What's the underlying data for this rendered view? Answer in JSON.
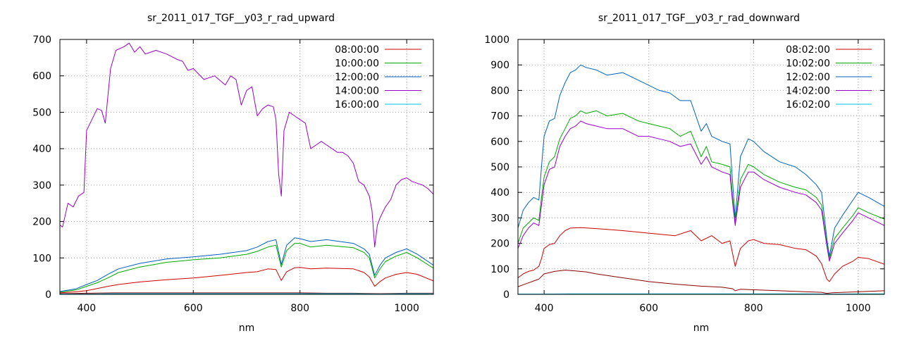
{
  "chart_data": [
    {
      "type": "line",
      "title": "sr_2011_017_TGF__y03_r_rad_upward",
      "xlabel": "nm",
      "ylabel": "",
      "xlim": [
        350,
        1050
      ],
      "ylim": [
        0,
        700
      ],
      "xticks": [
        400,
        600,
        800,
        1000
      ],
      "yticks": [
        0,
        100,
        200,
        300,
        400,
        500,
        600,
        700
      ],
      "grid": true,
      "legend_position": "top-right",
      "series": [
        {
          "name": "08:00:00",
          "color": "#8b0000",
          "x": [
            350,
            400,
            450,
            500,
            550,
            600,
            650,
            700,
            750,
            800,
            850,
            900,
            950,
            1000,
            1050
          ],
          "y": [
            2,
            3,
            4,
            4,
            4,
            4,
            4,
            4,
            4,
            4,
            3,
            3,
            2,
            3,
            3
          ]
        },
        {
          "name": "08:00:00",
          "color": "#cc0000",
          "x": [
            350,
            380,
            400,
            420,
            440,
            460,
            500,
            550,
            600,
            650,
            700,
            720,
            740,
            755,
            765,
            775,
            790,
            800,
            820,
            850,
            900,
            920,
            930,
            940,
            950,
            960,
            980,
            1000,
            1020,
            1050
          ],
          "y": [
            4,
            7,
            10,
            16,
            22,
            27,
            34,
            40,
            45,
            52,
            60,
            62,
            70,
            68,
            38,
            62,
            73,
            74,
            70,
            72,
            70,
            60,
            48,
            22,
            35,
            45,
            55,
            60,
            55,
            37
          ]
        },
        {
          "name": "10:00:00",
          "color": "#00aa00",
          "x": [
            350,
            380,
            400,
            420,
            440,
            460,
            500,
            550,
            600,
            650,
            700,
            720,
            740,
            755,
            765,
            775,
            790,
            800,
            820,
            850,
            900,
            920,
            930,
            940,
            950,
            960,
            980,
            1000,
            1020,
            1050
          ],
          "y": [
            6,
            12,
            22,
            32,
            45,
            60,
            75,
            88,
            95,
            100,
            110,
            118,
            130,
            135,
            75,
            120,
            140,
            140,
            130,
            135,
            128,
            115,
            100,
            45,
            70,
            90,
            105,
            115,
            100,
            72
          ]
        },
        {
          "name": "12:00:00",
          "color": "#0060c0",
          "x": [
            350,
            380,
            400,
            420,
            440,
            460,
            500,
            550,
            600,
            650,
            700,
            720,
            740,
            755,
            765,
            775,
            790,
            800,
            820,
            850,
            900,
            920,
            930,
            940,
            950,
            960,
            980,
            1000,
            1020,
            1050
          ],
          "y": [
            8,
            15,
            27,
            38,
            55,
            70,
            85,
            97,
            103,
            110,
            120,
            130,
            145,
            150,
            82,
            135,
            155,
            153,
            145,
            150,
            140,
            125,
            110,
            52,
            80,
            100,
            115,
            125,
            110,
            80
          ]
        },
        {
          "name": "14:00:00",
          "color": "#9900cc",
          "x": [
            350,
            355,
            365,
            375,
            385,
            395,
            400,
            410,
            420,
            428,
            435,
            445,
            455,
            470,
            480,
            490,
            500,
            510,
            520,
            530,
            550,
            570,
            580,
            590,
            600,
            620,
            640,
            660,
            670,
            680,
            690,
            700,
            710,
            720,
            730,
            740,
            750,
            755,
            760,
            765,
            770,
            780,
            790,
            800,
            810,
            820,
            830,
            840,
            850,
            860,
            870,
            880,
            890,
            900,
            910,
            920,
            930,
            935,
            940,
            945,
            950,
            960,
            970,
            980,
            990,
            1000,
            1010,
            1020,
            1030,
            1040,
            1050
          ],
          "y": [
            190,
            185,
            250,
            240,
            270,
            280,
            450,
            480,
            510,
            505,
            470,
            620,
            670,
            680,
            690,
            665,
            680,
            660,
            665,
            670,
            660,
            645,
            640,
            615,
            620,
            590,
            600,
            575,
            600,
            590,
            520,
            560,
            570,
            490,
            510,
            520,
            515,
            480,
            330,
            270,
            450,
            500,
            490,
            480,
            470,
            400,
            410,
            420,
            410,
            400,
            390,
            390,
            380,
            360,
            310,
            300,
            270,
            230,
            130,
            190,
            210,
            240,
            260,
            300,
            315,
            320,
            310,
            305,
            300,
            290,
            275
          ]
        },
        {
          "name": "16:00:00",
          "color": "#00c0e0",
          "x": [
            350,
            400,
            450,
            500,
            550,
            600,
            650,
            700,
            750,
            800,
            850,
            900,
            950,
            1000,
            1050
          ],
          "y": [
            1,
            1,
            2,
            2,
            2,
            2,
            2,
            2,
            2,
            2,
            2,
            2,
            1,
            2,
            2
          ]
        }
      ]
    },
    {
      "type": "line",
      "title": "sr_2011_017_TGF__y03_r_rad_downward",
      "xlabel": "nm",
      "ylabel": "",
      "xlim": [
        350,
        1050
      ],
      "ylim": [
        0,
        1000
      ],
      "xticks": [
        400,
        600,
        800,
        1000
      ],
      "yticks": [
        0,
        100,
        200,
        300,
        400,
        500,
        600,
        700,
        800,
        900,
        1000
      ],
      "grid": true,
      "legend_position": "top-right",
      "series": [
        {
          "name": "08:02:00",
          "color": "#8b0000",
          "x": [
            350,
            370,
            390,
            400,
            420,
            440,
            460,
            480,
            500,
            550,
            600,
            650,
            700,
            740,
            760,
            765,
            775,
            800,
            850,
            900,
            930,
            940,
            950,
            1000,
            1050
          ],
          "y": [
            30,
            45,
            60,
            80,
            90,
            95,
            92,
            88,
            80,
            65,
            50,
            40,
            32,
            28,
            22,
            14,
            20,
            18,
            14,
            10,
            8,
            4,
            6,
            10,
            14
          ]
        },
        {
          "name": "08:02:00",
          "color": "#cc0000",
          "x": [
            350,
            360,
            370,
            380,
            390,
            395,
            400,
            410,
            420,
            430,
            440,
            450,
            470,
            500,
            550,
            600,
            650,
            680,
            700,
            720,
            740,
            755,
            760,
            765,
            775,
            790,
            800,
            820,
            850,
            880,
            900,
            920,
            930,
            940,
            945,
            955,
            970,
            990,
            1000,
            1020,
            1050
          ],
          "y": [
            65,
            80,
            90,
            95,
            110,
            140,
            180,
            195,
            200,
            230,
            250,
            260,
            262,
            258,
            250,
            240,
            230,
            250,
            210,
            230,
            200,
            210,
            160,
            110,
            180,
            210,
            215,
            200,
            195,
            180,
            175,
            150,
            120,
            60,
            50,
            80,
            110,
            130,
            145,
            140,
            118
          ]
        },
        {
          "name": "10:02:00",
          "color": "#00aa00",
          "x": [
            350,
            360,
            370,
            380,
            390,
            395,
            400,
            410,
            420,
            430,
            440,
            450,
            460,
            470,
            480,
            500,
            520,
            550,
            580,
            600,
            620,
            640,
            660,
            680,
            700,
            710,
            720,
            740,
            755,
            760,
            765,
            775,
            790,
            800,
            820,
            850,
            880,
            900,
            920,
            930,
            940,
            945,
            955,
            970,
            990,
            1000,
            1020,
            1050
          ],
          "y": [
            200,
            260,
            280,
            300,
            290,
            380,
            460,
            520,
            540,
            610,
            650,
            690,
            700,
            720,
            710,
            720,
            700,
            710,
            680,
            670,
            660,
            650,
            620,
            640,
            540,
            580,
            520,
            510,
            500,
            380,
            280,
            450,
            510,
            500,
            470,
            440,
            420,
            410,
            380,
            350,
            200,
            140,
            220,
            260,
            310,
            340,
            320,
            295
          ]
        },
        {
          "name": "12:02:00",
          "color": "#0060c0",
          "x": [
            350,
            360,
            370,
            380,
            390,
            395,
            400,
            410,
            420,
            430,
            440,
            450,
            460,
            470,
            480,
            500,
            520,
            550,
            580,
            600,
            620,
            640,
            660,
            680,
            700,
            710,
            720,
            740,
            755,
            760,
            765,
            775,
            790,
            800,
            820,
            850,
            880,
            900,
            920,
            930,
            940,
            945,
            955,
            970,
            990,
            1000,
            1020,
            1050
          ],
          "y": [
            260,
            330,
            360,
            380,
            370,
            500,
            620,
            680,
            690,
            780,
            830,
            870,
            880,
            900,
            890,
            880,
            860,
            870,
            840,
            820,
            800,
            790,
            760,
            760,
            640,
            670,
            620,
            600,
            590,
            440,
            300,
            540,
            610,
            600,
            560,
            520,
            500,
            470,
            430,
            400,
            220,
            150,
            260,
            310,
            370,
            400,
            380,
            345
          ]
        },
        {
          "name": "14:02:00",
          "color": "#9900cc",
          "x": [
            350,
            360,
            370,
            380,
            390,
            395,
            400,
            410,
            420,
            430,
            440,
            450,
            460,
            470,
            480,
            500,
            520,
            550,
            580,
            600,
            620,
            640,
            660,
            680,
            700,
            710,
            720,
            740,
            755,
            760,
            765,
            775,
            790,
            800,
            820,
            850,
            880,
            900,
            920,
            930,
            940,
            945,
            955,
            970,
            990,
            1000,
            1020,
            1050
          ],
          "y": [
            180,
            230,
            260,
            280,
            270,
            350,
            430,
            490,
            500,
            580,
            620,
            650,
            660,
            680,
            670,
            660,
            650,
            650,
            620,
            620,
            610,
            600,
            580,
            590,
            510,
            540,
            500,
            480,
            470,
            360,
            270,
            420,
            480,
            480,
            450,
            420,
            400,
            390,
            360,
            330,
            190,
            130,
            200,
            240,
            290,
            320,
            300,
            270
          ]
        },
        {
          "name": "16:02:00",
          "color": "#00c0e0",
          "x": [
            350,
            400,
            450,
            500,
            550,
            600,
            650,
            700,
            750,
            800,
            850,
            900,
            950,
            1000,
            1050
          ],
          "y": [
            1,
            1,
            2,
            2,
            2,
            2,
            2,
            2,
            2,
            2,
            2,
            2,
            1,
            2,
            2
          ]
        }
      ]
    }
  ]
}
